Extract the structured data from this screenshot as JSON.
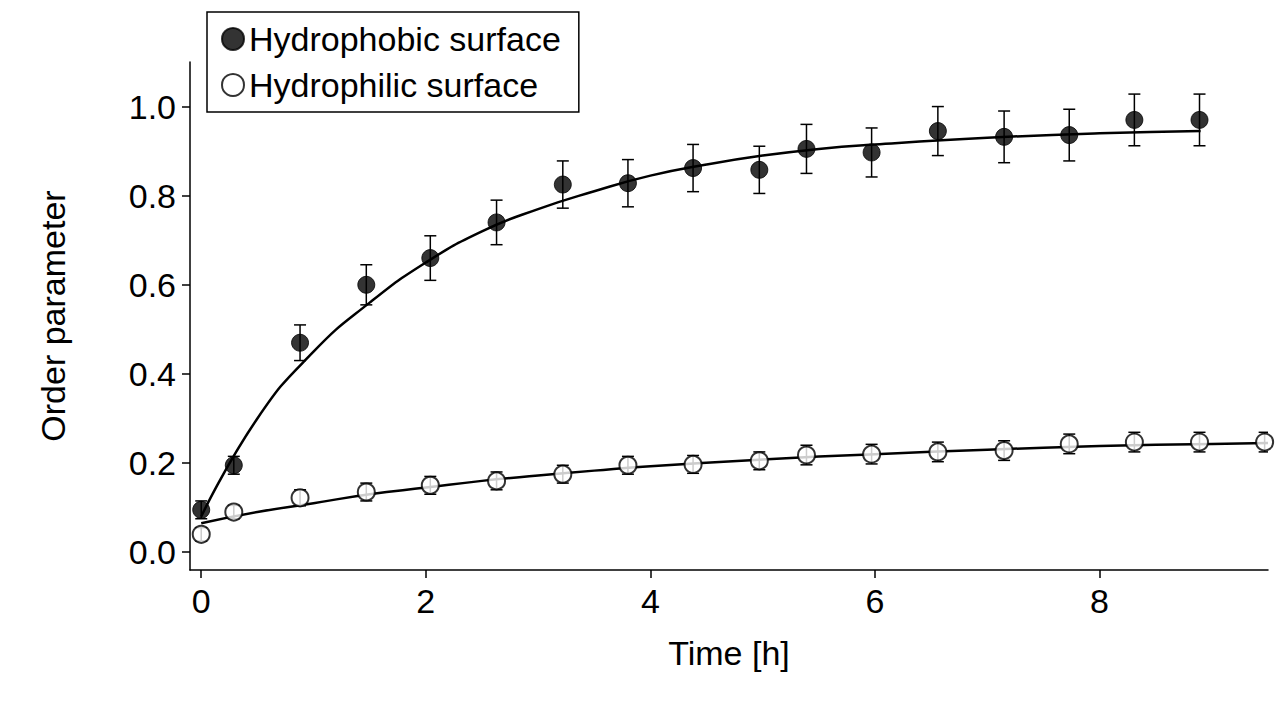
{
  "chart_data": {
    "type": "scatter",
    "xlabel": "Time [h]",
    "ylabel": "Order parameter",
    "xlim": [
      -0.1,
      9.5
    ],
    "ylim": [
      -0.04,
      1.1
    ],
    "xticks": [
      0,
      2,
      4,
      6,
      8
    ],
    "yticks": [
      {
        "value": 0,
        "label": "0.0"
      },
      {
        "value": 0.2,
        "label": "0.2"
      },
      {
        "value": 0.4,
        "label": "0.4"
      },
      {
        "value": 0.6,
        "label": "0.6"
      },
      {
        "value": 0.8,
        "label": "0.8"
      },
      {
        "value": 1,
        "label": "1.0"
      }
    ],
    "grid": false,
    "legend": "upper left",
    "series": [
      {
        "name": "Hydrophobic surface",
        "type": "scatter",
        "marker": "filled",
        "color": "#000000",
        "x": [
          0,
          0.29,
          0.88,
          1.47,
          2.04,
          2.63,
          3.22,
          3.8,
          4.38,
          4.97,
          5.39,
          5.97,
          6.56,
          7.15,
          7.73,
          8.31,
          8.89
        ],
        "values": [
          0.095,
          0.195,
          0.47,
          0.6,
          0.66,
          0.74,
          0.825,
          0.828,
          0.862,
          0.858,
          0.905,
          0.897,
          0.945,
          0.932,
          0.936,
          0.97,
          0.97
        ],
        "errors": [
          0.02,
          0.02,
          0.04,
          0.045,
          0.05,
          0.05,
          0.053,
          0.053,
          0.053,
          0.053,
          0.055,
          0.055,
          0.055,
          0.058,
          0.058,
          0.058,
          0.058
        ]
      },
      {
        "name": "Hydrophilic surface",
        "type": "scatter",
        "marker": "open",
        "color": "#000000",
        "x": [
          0,
          0.29,
          0.88,
          1.47,
          2.04,
          2.63,
          3.22,
          3.8,
          4.38,
          4.97,
          5.39,
          5.97,
          6.56,
          7.15,
          7.73,
          8.31,
          8.89,
          9.47
        ],
        "values": [
          0.04,
          0.09,
          0.122,
          0.135,
          0.15,
          0.16,
          0.175,
          0.195,
          0.197,
          0.205,
          0.218,
          0.22,
          0.225,
          0.228,
          0.243,
          0.247,
          0.247,
          0.247
        ],
        "errors": [
          0.015,
          0.015,
          0.018,
          0.02,
          0.02,
          0.02,
          0.02,
          0.02,
          0.02,
          0.02,
          0.022,
          0.022,
          0.022,
          0.022,
          0.022,
          0.022,
          0.022,
          0.022
        ]
      },
      {
        "type": "line",
        "line_style": "solid",
        "color": "#000000",
        "x": [
          0,
          0.5,
          1,
          1.5,
          2,
          2.5,
          3,
          3.5,
          4,
          4.5,
          5,
          5.5,
          6,
          7,
          8,
          8.9
        ],
        "values": [
          0.08,
          0.3,
          0.45,
          0.56,
          0.65,
          0.72,
          0.77,
          0.81,
          0.845,
          0.87,
          0.89,
          0.905,
          0.915,
          0.93,
          0.94,
          0.945
        ]
      },
      {
        "type": "line",
        "line_style": "solid",
        "color": "#000000",
        "x": [
          0,
          0.5,
          1,
          1.5,
          2,
          2.5,
          3,
          3.5,
          4,
          5,
          6,
          7,
          8,
          9,
          9.5
        ],
        "values": [
          0.065,
          0.09,
          0.11,
          0.13,
          0.145,
          0.16,
          0.172,
          0.183,
          0.193,
          0.208,
          0.22,
          0.23,
          0.238,
          0.243,
          0.245
        ]
      }
    ]
  }
}
